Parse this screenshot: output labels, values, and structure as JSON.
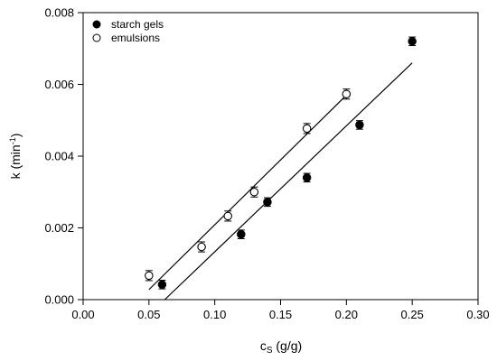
{
  "chart_data": {
    "type": "scatter",
    "title": "",
    "xlabel": "c",
    "xlabel_sub": "S",
    "xlabel_unit": "(g/g)",
    "ylabel": "k (min",
    "ylabel_sup": "-1",
    "ylabel_end": ")",
    "xlim": [
      0.0,
      0.3
    ],
    "ylim": [
      0.0,
      0.008
    ],
    "xticks": [
      "0.00",
      "0.05",
      "0.10",
      "0.15",
      "0.20",
      "0.25",
      "0.30"
    ],
    "yticks": [
      "0.000",
      "0.002",
      "0.004",
      "0.006",
      "0.008"
    ],
    "grid": false,
    "legend_position": "top-left",
    "series": [
      {
        "name": "starch gels",
        "marker": "filled-circle",
        "color": "#000000",
        "x": [
          0.06,
          0.12,
          0.14,
          0.17,
          0.21,
          0.25
        ],
        "y": [
          0.00042,
          0.00182,
          0.00272,
          0.0034,
          0.00487,
          0.0072
        ],
        "yerr": [
          0.00012,
          0.00012,
          0.00012,
          0.00012,
          0.00012,
          0.00012
        ],
        "fit": {
          "x": [
            0.062,
            0.25
          ],
          "y": [
            0.0,
            0.0066
          ]
        }
      },
      {
        "name": "emulsions",
        "marker": "open-circle",
        "color": "#000000",
        "x": [
          0.05,
          0.09,
          0.11,
          0.13,
          0.17,
          0.2
        ],
        "y": [
          0.00067,
          0.00147,
          0.00233,
          0.003,
          0.00477,
          0.00573
        ],
        "yerr": [
          0.00014,
          0.00014,
          0.00014,
          0.00014,
          0.00014,
          0.00014
        ],
        "fit": {
          "x": [
            0.05,
            0.2
          ],
          "y": [
            0.00028,
            0.0057
          ]
        }
      }
    ]
  }
}
